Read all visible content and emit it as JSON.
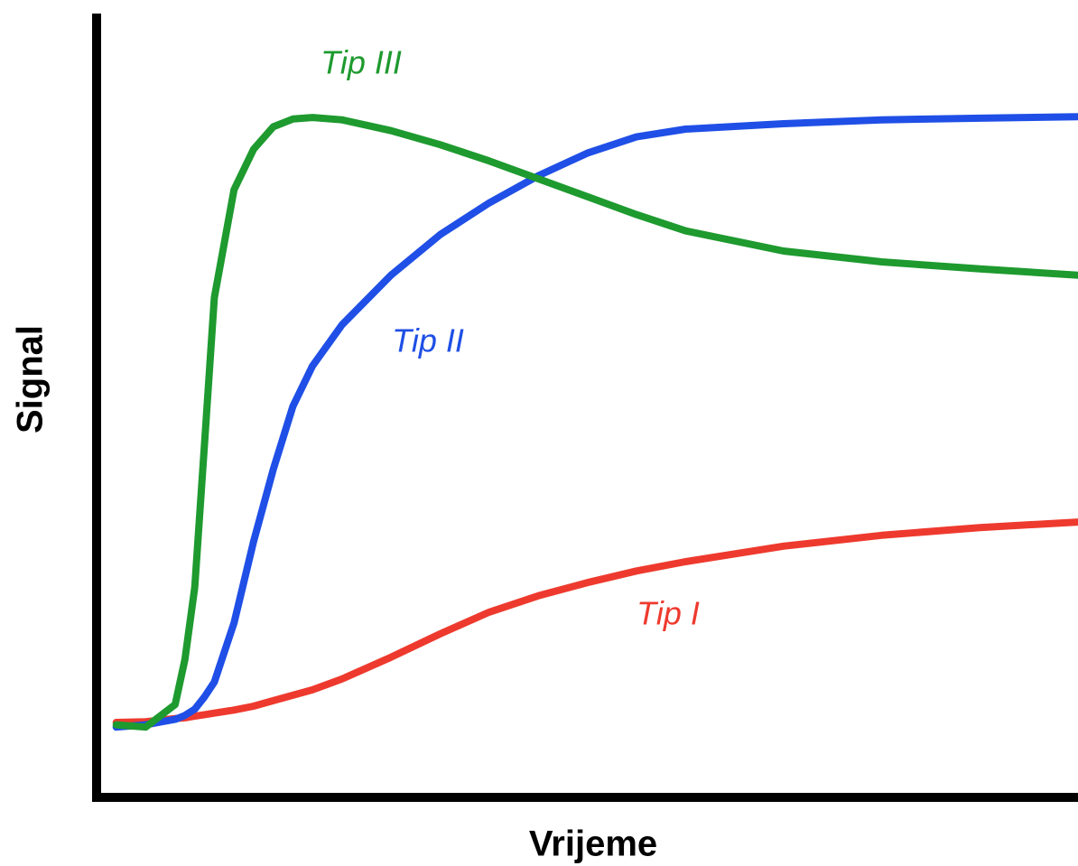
{
  "chart_data": {
    "type": "line",
    "x_label": "Vrijeme",
    "y_label": "Signal",
    "xlim": [
      0,
      100
    ],
    "ylim": [
      0,
      100
    ],
    "x": [
      2,
      5,
      8,
      9,
      10,
      11,
      12,
      14,
      16,
      18,
      20,
      22,
      25,
      30,
      35,
      40,
      45,
      50,
      55,
      60,
      70,
      80,
      90,
      100
    ],
    "series": [
      {
        "name": "Tip I",
        "color": "#ee3a2e",
        "values": [
          9.3,
          9.4,
          9.8,
          9.9,
          10.1,
          10.3,
          10.5,
          10.9,
          11.4,
          12.1,
          12.8,
          13.5,
          14.9,
          17.7,
          20.7,
          23.5,
          25.6,
          27.3,
          28.8,
          30.0,
          32.0,
          33.4,
          34.4,
          35.1
        ]
      },
      {
        "name": "Tip II",
        "color": "#1f4fe6",
        "values": [
          8.7,
          9.0,
          9.7,
          10.2,
          11.0,
          12.6,
          14.5,
          22.1,
          32.6,
          41.9,
          50.0,
          55.2,
          60.5,
          66.9,
          72.1,
          76.2,
          79.7,
          82.6,
          84.7,
          85.7,
          86.4,
          86.9,
          87.1,
          87.3
        ]
      },
      {
        "name": "Tip III",
        "color": "#1e9a2f",
        "values": [
          9.0,
          8.7,
          11.6,
          17.4,
          26.7,
          45.3,
          64.0,
          77.9,
          83.1,
          86.0,
          87.0,
          87.2,
          86.9,
          85.5,
          83.7,
          81.6,
          79.3,
          77.0,
          74.7,
          72.6,
          70.0,
          68.6,
          67.7,
          66.9
        ]
      }
    ]
  }
}
